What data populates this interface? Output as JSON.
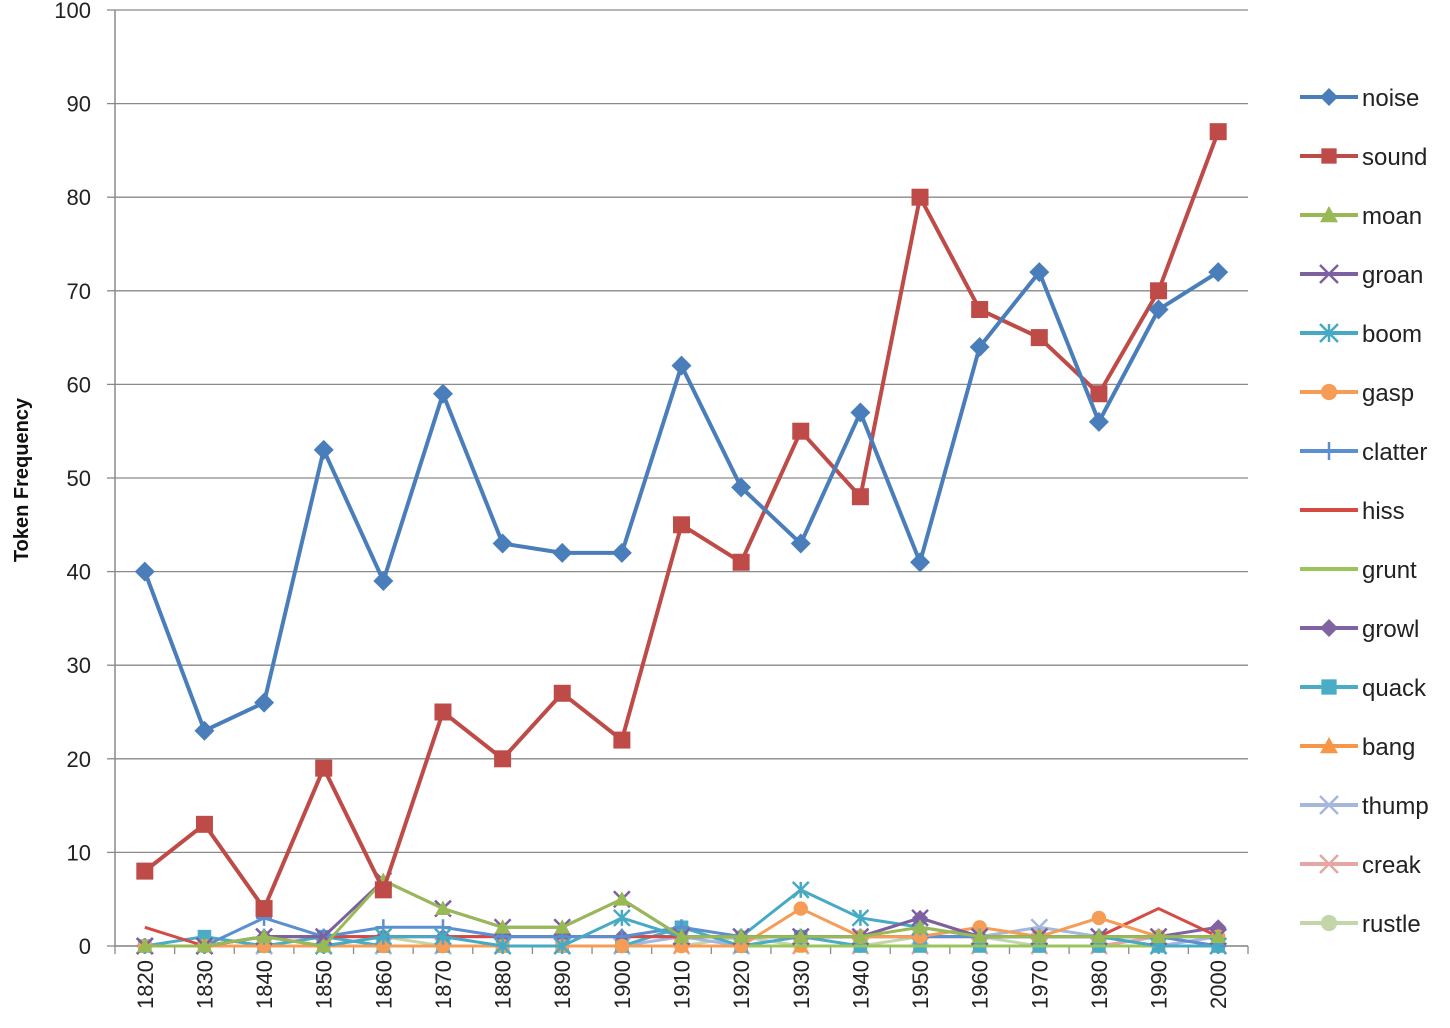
{
  "chart_data": {
    "type": "line",
    "title": "",
    "xlabel": "",
    "ylabel": "Token Frequency",
    "ylim": [
      0,
      100
    ],
    "yticks": [
      0,
      10,
      20,
      30,
      40,
      50,
      60,
      70,
      80,
      90,
      100
    ],
    "grid": true,
    "legend_position": "right",
    "x": [
      "1820",
      "1830",
      "1840",
      "1850",
      "1860",
      "1870",
      "1880",
      "1890",
      "1900",
      "1910",
      "1920",
      "1930",
      "1940",
      "1950",
      "1960",
      "1970",
      "1980",
      "1990",
      "2000"
    ],
    "series": [
      {
        "name": "noise",
        "color": "#4a7ebb",
        "marker": "diamond",
        "values": [
          40,
          23,
          26,
          53,
          39,
          59,
          43,
          42,
          42,
          62,
          49,
          43,
          57,
          41,
          64,
          72,
          56,
          68,
          72
        ]
      },
      {
        "name": "sound",
        "color": "#be4b48",
        "marker": "square",
        "values": [
          8,
          13,
          4,
          19,
          6,
          25,
          20,
          27,
          22,
          45,
          41,
          55,
          48,
          80,
          68,
          65,
          59,
          70,
          87
        ]
      },
      {
        "name": "moan",
        "color": "#98b954",
        "marker": "triangle",
        "values": [
          0,
          0,
          1,
          0,
          7,
          4,
          2,
          2,
          5,
          1,
          1,
          1,
          1,
          2,
          1,
          1,
          1,
          1,
          1
        ]
      },
      {
        "name": "groan",
        "color": "#7d60a0",
        "marker": "x",
        "values": [
          0,
          0,
          1,
          1,
          7,
          4,
          2,
          2,
          5,
          1,
          1,
          1,
          1,
          3,
          1,
          1,
          1,
          1,
          1
        ]
      },
      {
        "name": "boom",
        "color": "#46aac5",
        "marker": "star",
        "values": [
          0,
          0,
          1,
          0,
          1,
          1,
          0,
          0,
          3,
          1,
          1,
          6,
          3,
          2,
          1,
          1,
          1,
          0,
          0
        ]
      },
      {
        "name": "gasp",
        "color": "#f59d56",
        "marker": "circle",
        "values": [
          0,
          0,
          0,
          0,
          0,
          0,
          0,
          0,
          0,
          0,
          0,
          4,
          1,
          1,
          2,
          1,
          3,
          1,
          1
        ]
      },
      {
        "name": "clatter",
        "color": "#5b8fd0",
        "marker": "plus",
        "values": [
          0,
          0,
          3,
          1,
          2,
          2,
          1,
          1,
          1,
          2,
          1,
          1,
          1,
          1,
          1,
          1,
          1,
          1,
          0
        ]
      },
      {
        "name": "hiss",
        "color": "#d64a44",
        "marker": "none",
        "values": [
          2,
          0,
          1,
          1,
          1,
          1,
          1,
          1,
          1,
          1,
          1,
          1,
          1,
          1,
          1,
          1,
          1,
          4,
          1
        ]
      },
      {
        "name": "grunt",
        "color": "#9bc45b",
        "marker": "none",
        "values": [
          0,
          0,
          0,
          0,
          0,
          0,
          0,
          0,
          0,
          0,
          0,
          0,
          0,
          0,
          0,
          0,
          0,
          0,
          0
        ]
      },
      {
        "name": "growl",
        "color": "#8064a2",
        "marker": "diamond",
        "values": [
          0,
          0,
          1,
          1,
          1,
          1,
          1,
          1,
          1,
          1,
          1,
          1,
          1,
          3,
          1,
          1,
          1,
          1,
          2
        ]
      },
      {
        "name": "quack",
        "color": "#4bacc6",
        "marker": "square",
        "values": [
          0,
          1,
          0,
          1,
          0,
          0,
          0,
          0,
          0,
          2,
          0,
          1,
          0,
          0,
          0,
          0,
          0,
          0,
          0
        ]
      },
      {
        "name": "bang",
        "color": "#f79646",
        "marker": "triangle",
        "values": [
          0,
          0,
          0,
          0,
          0,
          0,
          0,
          0,
          0,
          0,
          0,
          0,
          0,
          0,
          0,
          0,
          0,
          0,
          0
        ]
      },
      {
        "name": "thump",
        "color": "#a5b7dd",
        "marker": "x",
        "values": [
          0,
          0,
          0,
          0,
          0,
          0,
          0,
          0,
          0,
          1,
          0,
          1,
          1,
          1,
          1,
          2,
          1,
          0,
          1
        ]
      },
      {
        "name": "creak",
        "color": "#e6a6a5",
        "marker": "x",
        "values": [
          0,
          0,
          0,
          0,
          0,
          0,
          0,
          0,
          0,
          0,
          0,
          0,
          0,
          0,
          0,
          0,
          0,
          1,
          0
        ]
      },
      {
        "name": "rustle",
        "color": "#c3d6a9",
        "marker": "circle",
        "values": [
          0,
          0,
          0,
          0,
          1,
          0,
          0,
          0,
          0,
          0,
          1,
          0,
          0,
          1,
          1,
          0,
          0,
          1,
          0
        ]
      }
    ]
  }
}
